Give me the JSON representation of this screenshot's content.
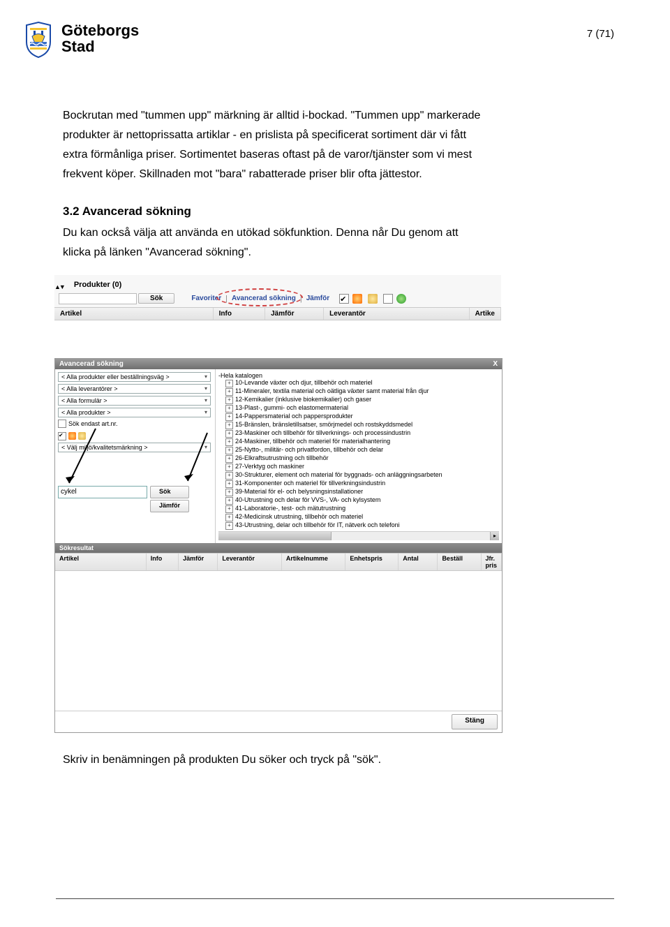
{
  "header": {
    "logo_line1": "Göteborgs",
    "logo_line2": "Stad",
    "page_indicator": "7 (71)"
  },
  "body": {
    "para1a": "Bockrutan med \"tummen upp\" märkning är alltid i-bockad. \"Tummen upp\" markerade",
    "para1b": "produkter är nettoprissatta artiklar - en prislista på specificerat sortiment där vi fått",
    "para1c": "extra förmånliga priser. Sortimentet baseras oftast på de varor/tjänster som vi mest",
    "para1d": "frekvent köper. Skillnaden mot \"bara\" rabatterade priser blir ofta jättestor.",
    "heading": "3.2   Avancerad sökning",
    "para2a": "Du kan också välja att använda en utökad sökfunktion. Denna når Du genom att",
    "para2b": "klicka på länken \"Avancerad sökning\".",
    "footer_line": "Skriv in benämningen på produkten Du söker och tryck på \"sök\"."
  },
  "shot1": {
    "produkter_tab": "Produkter (0)",
    "sok_btn": "Sök",
    "links": {
      "favoriter": "Favoriter",
      "avancerad": "Avancerad sökning",
      "jamfor": "Jämför"
    },
    "cols": {
      "artikel": "Artikel",
      "info": "Info",
      "jamfor": "Jämför",
      "leverantor": "Leverantör",
      "artike": "Artike"
    }
  },
  "shot2": {
    "title": "Avancerad sökning",
    "close": "X",
    "dropdowns": [
      "< Alla produkter eller beställningsväg >",
      "< Alla leverantörer >",
      "< Alla formulär >",
      "< Alla produkter >"
    ],
    "cb_sok_endast": "Sök endast art.nr.",
    "env_dd": "< Välj miljö/kvalitetsmärkning >",
    "search_value": "cykel",
    "sok_btn": "Sök",
    "jamfor_btn": "Jämför",
    "res_header": "Sökresultat",
    "res_cols": [
      "Artikel",
      "Info",
      "Jämför",
      "Leverantör",
      "Artikelnumme",
      "Enhetspris",
      "Antal",
      "Beställ",
      "Jfr. pris"
    ],
    "tree_root": "-Hela katalogen",
    "tree": [
      "10-Levande växter och djur, tillbehör och materiel",
      "11-Mineraler, textila material och oätliga växter samt material från djur",
      "12-Kemikalier (inklusive biokemikalier) och gaser",
      "13-Plast-, gummi- och elastomermaterial",
      "14-Pappersmaterial och pappersprodukter",
      "15-Bränslen, bränsletillsatser, smörjmedel och rostskyddsmedel",
      "23-Maskiner och tillbehör för tillverknings- och processindustrin",
      "24-Maskiner, tillbehör och materiel för materialhantering",
      "25-Nytto-, militär- och privatfordon, tillbehör och delar",
      "26-Elkraftsutrustning och tillbehör",
      "27-Verktyg och maskiner",
      "30-Strukturer, element och material för byggnads- och anläggningsarbeten",
      "31-Komponenter och materiel för tillverkningsindustrin",
      "39-Material för el- och belysningsinstallationer",
      "40-Utrustning och delar för VVS-, VA- och kylsystem",
      "41-Laboratorie-, test- och mätutrustning",
      "42-Medicinsk utrustning, tillbehör och materiel",
      "43-Utrustning, delar och tillbehör för IT, nätverk och telefoni"
    ],
    "stang_btn": "Stäng"
  }
}
